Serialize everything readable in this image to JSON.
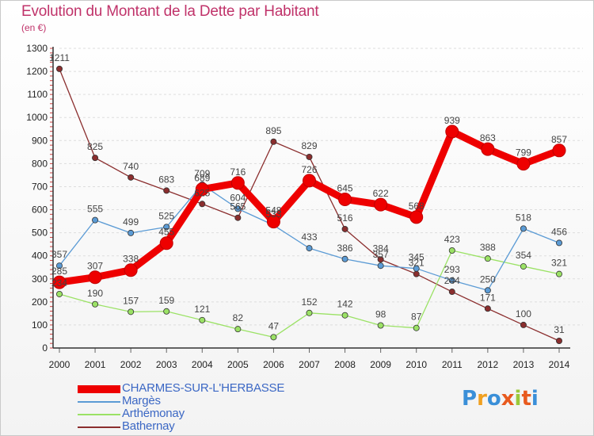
{
  "title": "Evolution du Montant de la Dette par Habitant",
  "unit": "(en €)",
  "logo_text": "Proxiti",
  "colors": {
    "title": "#c0336a",
    "axis": "#333333",
    "grid": "#dddddd",
    "label": "#444444"
  },
  "chart_data": {
    "type": "line",
    "title": "Evolution du Montant de la Dette par Habitant",
    "unit": "(en €)",
    "x": [
      "2000",
      "2001",
      "2002",
      "2003",
      "2004",
      "2005",
      "2006",
      "2007",
      "2008",
      "2009",
      "2010",
      "2011",
      "2012",
      "2013",
      "2014"
    ],
    "ylim": [
      0,
      1300
    ],
    "yticks": [
      0,
      100,
      200,
      300,
      400,
      500,
      600,
      700,
      800,
      900,
      1000,
      1100,
      1200,
      1300
    ],
    "grid": "horizontal dashed",
    "legend_position": "bottom-left",
    "series": [
      {
        "name": "CHARMES-SUR-L'HERBASSE",
        "color": "#ee0000",
        "values": [
          285,
          307,
          338,
          455,
          689,
          716,
          548,
          726,
          645,
          622,
          568,
          939,
          863,
          799,
          857
        ],
        "labels": [
          "285",
          "307",
          "338",
          "455",
          "689",
          "716",
          "548",
          "726",
          "645",
          "622",
          "568",
          "939",
          "863",
          "799",
          "857"
        ]
      },
      {
        "name": "Margès",
        "color": "#5b9bd5",
        "values": [
          357,
          555,
          499,
          525,
          709,
          604,
          533,
          433,
          386,
          357,
          345,
          293,
          250,
          518,
          456
        ],
        "labels": [
          "357",
          "555",
          "499",
          "525",
          "709",
          "604",
          "533",
          "433",
          "386",
          "357",
          "345",
          "293",
          "250",
          "518",
          "456"
        ]
      },
      {
        "name": "Arthémonay",
        "color": "#9be265",
        "values": [
          234,
          190,
          157,
          159,
          121,
          82,
          47,
          152,
          142,
          98,
          87,
          423,
          388,
          354,
          321
        ],
        "labels": [
          "234",
          "190",
          "157",
          "159",
          "121",
          "82",
          "47",
          "152",
          "142",
          "98",
          "87",
          "423",
          "388",
          "354",
          "321"
        ]
      },
      {
        "name": "Bathernay",
        "color": "#8b2e2e",
        "values": [
          1211,
          825,
          740,
          683,
          625,
          565,
          895,
          829,
          516,
          384,
          321,
          244,
          171,
          100,
          31
        ],
        "labels": [
          "1211",
          "825",
          "740",
          "683",
          "625",
          "565",
          "895",
          "829",
          "516",
          "384",
          "321",
          "244",
          "171",
          "100",
          "31"
        ]
      }
    ]
  }
}
